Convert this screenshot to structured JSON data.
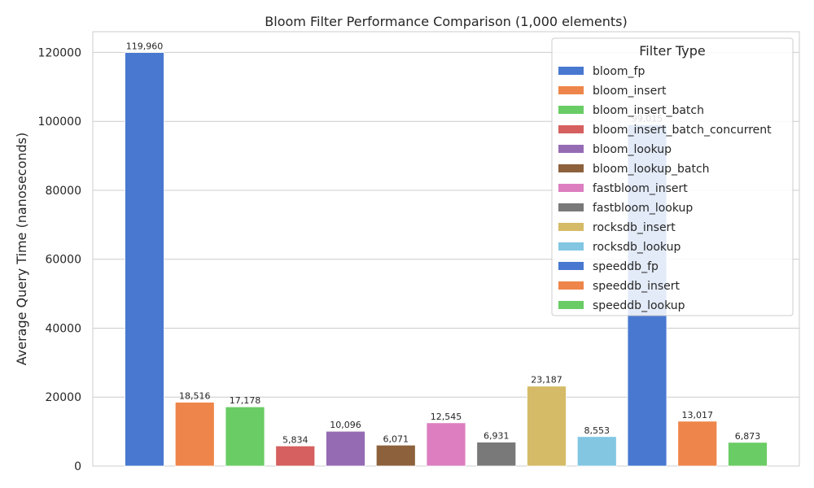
{
  "chart_data": {
    "type": "bar",
    "title": "Bloom Filter Performance Comparison (1,000 elements)",
    "xlabel": "",
    "ylabel": "Average Query Time (nanoseconds)",
    "ylim": [
      0,
      126000
    ],
    "yticks": [
      0,
      20000,
      40000,
      60000,
      80000,
      100000,
      120000
    ],
    "grid": true,
    "legend": {
      "title": "Filter Type",
      "placement": "top-right"
    },
    "categories": [
      "bloom_fp",
      "bloom_insert",
      "bloom_insert_batch",
      "bloom_insert_batch_concurrent",
      "bloom_lookup",
      "bloom_lookup_batch",
      "fastbloom_insert",
      "fastbloom_lookup",
      "rocksdb_insert",
      "rocksdb_lookup",
      "speeddb_fp",
      "speeddb_insert",
      "speeddb_lookup"
    ],
    "values": [
      119960,
      18516,
      17178,
      5834,
      10096,
      6071,
      12545,
      6931,
      23187,
      8553,
      99015,
      13017,
      6873
    ],
    "data_labels": [
      "119,960",
      "18,516",
      "17,178",
      "5,834",
      "10,096",
      "6,071",
      "12,545",
      "6,931",
      "23,187",
      "8,553",
      "99,015",
      "13,017",
      "6,873"
    ],
    "colors": [
      "#4878d0",
      "#ee854a",
      "#6acc64",
      "#d65f5f",
      "#956cb4",
      "#8c613c",
      "#dc7ec0",
      "#797979",
      "#d5bb67",
      "#82c6e2",
      "#4878d0",
      "#ee854a",
      "#6acc64"
    ]
  }
}
